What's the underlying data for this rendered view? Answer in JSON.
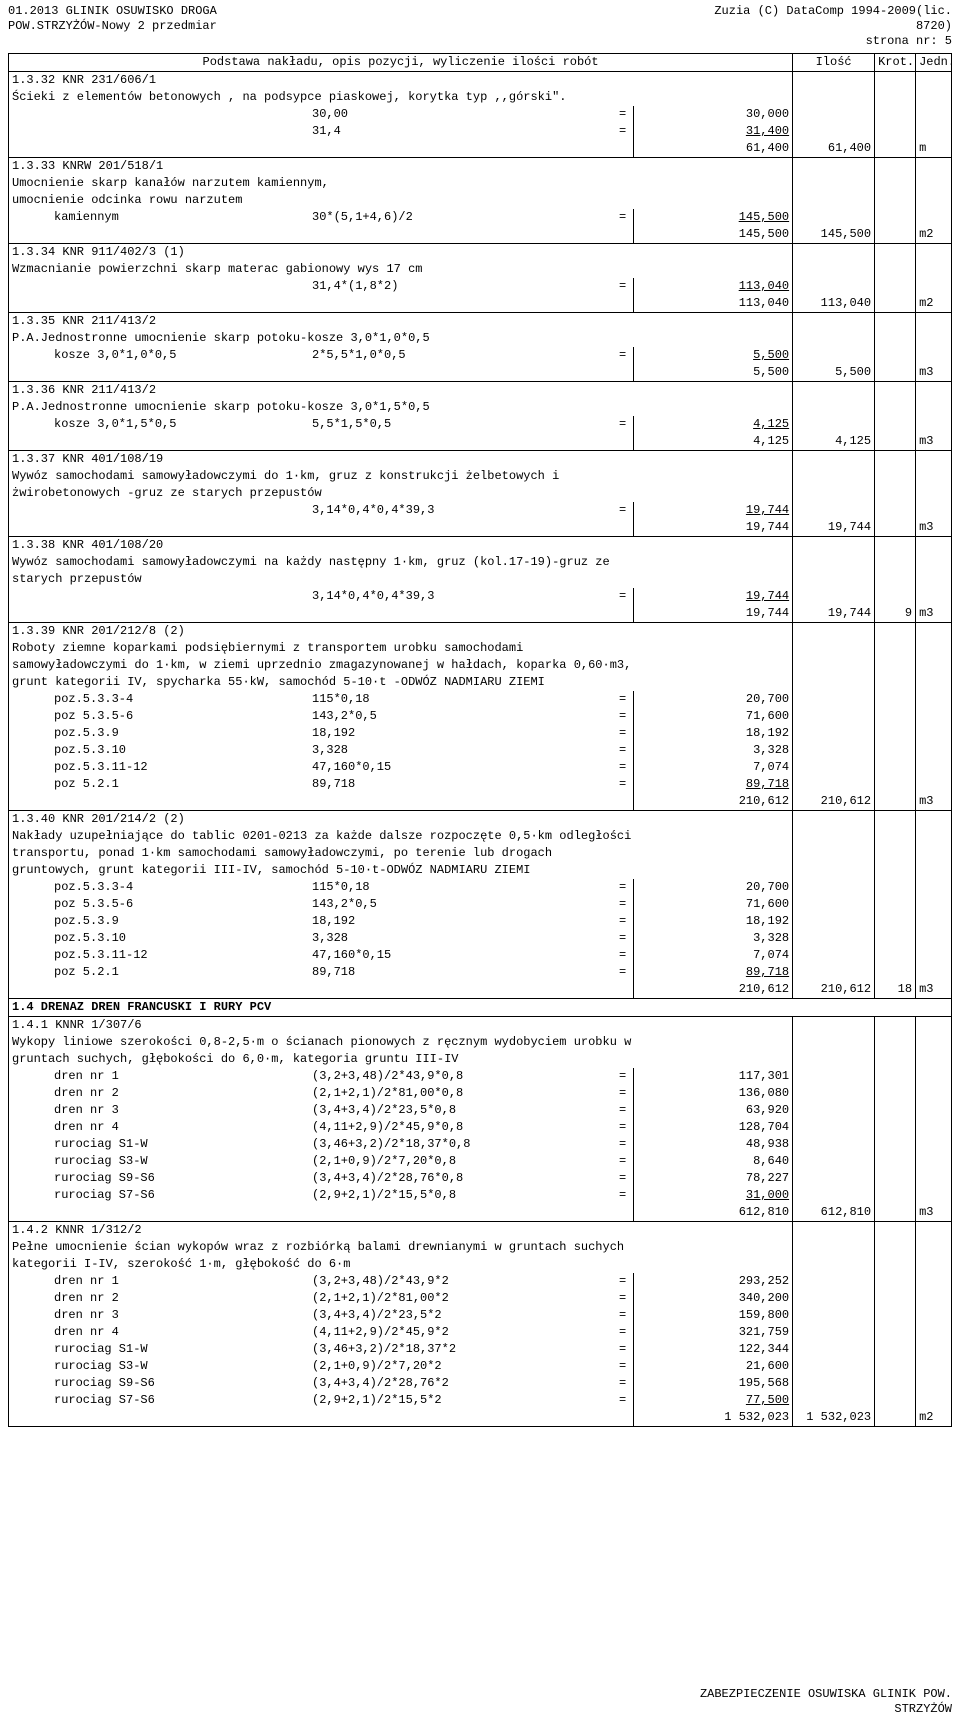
{
  "header": {
    "left1": "01.2013 GLINIK  OSUWISKO DROGA",
    "left2": "POW.STRZYŻÓW-Nowy 2 przedmiar",
    "right1": "Zuzia (C) DataComp 1994-2009(lic.",
    "right2": "8720)",
    "page": "strona nr:    5"
  },
  "table_header": {
    "desc": "Podstawa nakładu, opis pozycji, wyliczenie ilości robót",
    "qty": "Ilość",
    "krot": "Krot.",
    "unit": "Jedn."
  },
  "footer": {
    "line1": "ZABEZPIECZENIE OSUWISKA GLINIK POW.",
    "line2": "STRZYŻÓW"
  },
  "rows": [
    {
      "type": "code",
      "code": "1.3.32 KNR 231/606/1"
    },
    {
      "type": "text",
      "text": "Ścieki z elementów betonowych , na podsypce piaskowej, korytka typ ,,górski\"."
    },
    {
      "type": "calc",
      "label": "",
      "expr": "30,00",
      "val": "30,000"
    },
    {
      "type": "calc",
      "label": "",
      "expr": "31,4",
      "val": "31,400",
      "ul": true
    },
    {
      "type": "sum",
      "val": "61,400",
      "qty": "61,400",
      "unit": "m"
    },
    {
      "type": "code",
      "code": "1.3.33 KNRW 201/518/1"
    },
    {
      "type": "text",
      "text": "Umocnienie skarp kanałów narzutem kamiennym,"
    },
    {
      "type": "text",
      "text": "umocnienie odcinka rowu narzutem"
    },
    {
      "type": "calc",
      "label": "kamiennym",
      "expr": "30*(5,1+4,6)/2",
      "val": "145,500",
      "ul": true
    },
    {
      "type": "sum",
      "val": "145,500",
      "qty": "145,500",
      "unit": "m2"
    },
    {
      "type": "code",
      "code": "1.3.34 KNR 911/402/3 (1)"
    },
    {
      "type": "text",
      "text": "Wzmacnianie powierzchni skarp materac gabionowy wys 17 cm"
    },
    {
      "type": "calc",
      "label": "",
      "expr": "31,4*(1,8*2)",
      "val": "113,040",
      "ul": true
    },
    {
      "type": "sum",
      "val": "113,040",
      "qty": "113,040",
      "unit": "m2"
    },
    {
      "type": "code",
      "code": "1.3.35 KNR 211/413/2"
    },
    {
      "type": "text",
      "text": "P.A.Jednostronne  umocnienie skarp potoku-kosze 3,0*1,0*0,5"
    },
    {
      "type": "calc",
      "label": "kosze 3,0*1,0*0,5",
      "expr": "2*5,5*1,0*0,5",
      "val": "5,500",
      "ul": true
    },
    {
      "type": "sum",
      "val": "5,500",
      "qty": "5,500",
      "unit": "m3"
    },
    {
      "type": "code",
      "code": "1.3.36 KNR 211/413/2"
    },
    {
      "type": "text",
      "text": "P.A.Jednostronne  umocnienie skarp potoku-kosze 3,0*1,5*0,5"
    },
    {
      "type": "calc",
      "label": "kosze 3,0*1,5*0,5",
      "expr": "5,5*1,5*0,5",
      "val": "4,125",
      "ul": true
    },
    {
      "type": "sum",
      "val": "4,125",
      "qty": "4,125",
      "unit": "m3"
    },
    {
      "type": "code",
      "code": "1.3.37 KNR 401/108/19"
    },
    {
      "type": "text",
      "text": "Wywóz samochodami samowyładowczymi do 1·km, gruz z konstrukcji żelbetowych i"
    },
    {
      "type": "text",
      "text": "żwirobetonowych -gruz ze starych przepustów"
    },
    {
      "type": "calc",
      "label": "",
      "expr": "3,14*0,4*0,4*39,3",
      "val": "19,744",
      "ul": true
    },
    {
      "type": "sum",
      "val": "19,744",
      "qty": "19,744",
      "unit": "m3"
    },
    {
      "type": "code",
      "code": "1.3.38 KNR 401/108/20"
    },
    {
      "type": "text",
      "text": "Wywóz samochodami samowyładowczymi na każdy następny 1·km, gruz (kol.17-19)-gruz ze"
    },
    {
      "type": "text",
      "text": "starych przepustów"
    },
    {
      "type": "calc",
      "label": "",
      "expr": "3,14*0,4*0,4*39,3",
      "val": "19,744",
      "ul": true
    },
    {
      "type": "sum",
      "val": "19,744",
      "qty": "19,744",
      "krot": "9",
      "unit": "m3"
    },
    {
      "type": "code",
      "code": "1.3.39 KNR 201/212/8 (2)"
    },
    {
      "type": "text",
      "text": "Roboty ziemne koparkami podsiębiernymi z transportem urobku samochodami"
    },
    {
      "type": "text",
      "text": "samowyładowczymi do 1·km, w ziemi uprzednio zmagazynowanej w hałdach, koparka 0,60·m3,"
    },
    {
      "type": "text",
      "text": "grunt kategorii IV, spycharka 55·kW, samochód 5-10·t -ODWÓZ NADMIARU ZIEMI"
    },
    {
      "type": "calc",
      "label": "poz.5.3.3-4",
      "expr": "115*0,18",
      "val": "20,700"
    },
    {
      "type": "calc",
      "label": "poz 5.3.5-6",
      "expr": "143,2*0,5",
      "val": "71,600"
    },
    {
      "type": "calc",
      "label": "poz.5.3.9",
      "expr": "18,192",
      "val": "18,192"
    },
    {
      "type": "calc",
      "label": "poz.5.3.10",
      "expr": "3,328",
      "val": "3,328"
    },
    {
      "type": "calc",
      "label": "poz.5.3.11-12",
      "expr": "47,160*0,15",
      "val": "7,074"
    },
    {
      "type": "calc",
      "label": "poz 5.2.1",
      "expr": "89,718",
      "val": "89,718",
      "ul": true
    },
    {
      "type": "sum",
      "val": "210,612",
      "qty": "210,612",
      "unit": "m3"
    },
    {
      "type": "code",
      "code": "1.3.40 KNR 201/214/2 (2)"
    },
    {
      "type": "text",
      "text": "Nakłady uzupełniające do tablic 0201-0213 za każde dalsze rozpoczęte 0,5·km odległości"
    },
    {
      "type": "text",
      "text": "transportu, ponad 1·km samochodami samowyładowczymi, po terenie lub drogach"
    },
    {
      "type": "text",
      "text": "gruntowych, grunt kategorii III-IV, samochód 5-10·t-ODWÓZ NADMIARU ZIEMI"
    },
    {
      "type": "calc",
      "label": "poz.5.3.3-4",
      "expr": "115*0,18",
      "val": "20,700"
    },
    {
      "type": "calc",
      "label": "poz 5.3.5-6",
      "expr": "143,2*0,5",
      "val": "71,600"
    },
    {
      "type": "calc",
      "label": "poz.5.3.9",
      "expr": "18,192",
      "val": "18,192"
    },
    {
      "type": "calc",
      "label": "poz.5.3.10",
      "expr": "3,328",
      "val": "3,328"
    },
    {
      "type": "calc",
      "label": "poz.5.3.11-12",
      "expr": "47,160*0,15",
      "val": "7,074"
    },
    {
      "type": "calc",
      "label": "poz 5.2.1",
      "expr": "89,718",
      "val": "89,718",
      "ul": true
    },
    {
      "type": "sum",
      "val": "210,612",
      "qty": "210,612",
      "krot": "18",
      "unit": "m3"
    },
    {
      "type": "section",
      "text": "1.4 DRENAZ DREN FRANCUSKI I RURY PCV"
    },
    {
      "type": "code",
      "code": "1.4.1 KNNR 1/307/6"
    },
    {
      "type": "text",
      "text": "Wykopy liniowe szerokości 0,8-2,5·m o ścianach pionowych z ręcznym wydobyciem urobku w"
    },
    {
      "type": "text",
      "text": "gruntach suchych, głębokości do 6,0·m, kategoria gruntu III-IV"
    },
    {
      "type": "calc",
      "label": "dren nr 1",
      "expr": "(3,2+3,48)/2*43,9*0,8",
      "val": "117,301"
    },
    {
      "type": "calc",
      "label": "dren nr 2",
      "expr": "(2,1+2,1)/2*81,00*0,8",
      "val": "136,080"
    },
    {
      "type": "calc",
      "label": "dren nr 3",
      "expr": "(3,4+3,4)/2*23,5*0,8",
      "val": "63,920"
    },
    {
      "type": "calc",
      "label": "dren nr 4",
      "expr": "(4,11+2,9)/2*45,9*0,8",
      "val": "128,704"
    },
    {
      "type": "calc",
      "label": "rurociag S1-W",
      "expr": "(3,46+3,2)/2*18,37*0,8",
      "val": "48,938"
    },
    {
      "type": "calc",
      "label": "rurociag S3-W",
      "expr": "(2,1+0,9)/2*7,20*0,8",
      "val": "8,640"
    },
    {
      "type": "calc",
      "label": "rurociag S9-S6",
      "expr": "(3,4+3,4)/2*28,76*0,8",
      "val": "78,227"
    },
    {
      "type": "calc",
      "label": "rurociag S7-S6",
      "expr": "(2,9+2,1)/2*15,5*0,8",
      "val": "31,000",
      "ul": true
    },
    {
      "type": "sum",
      "val": "612,810",
      "qty": "612,810",
      "unit": "m3"
    },
    {
      "type": "code",
      "code": "1.4.2 KNNR 1/312/2"
    },
    {
      "type": "text",
      "text": "Pełne umocnienie ścian wykopów wraz z rozbiórką balami drewnianymi w gruntach suchych"
    },
    {
      "type": "text",
      "text": "kategorii I-IV, szerokość 1·m, głębokość do 6·m"
    },
    {
      "type": "calc",
      "label": "dren nr 1",
      "expr": "(3,2+3,48)/2*43,9*2",
      "val": "293,252"
    },
    {
      "type": "calc",
      "label": "dren nr 2",
      "expr": "(2,1+2,1)/2*81,00*2",
      "val": "340,200"
    },
    {
      "type": "calc",
      "label": "dren nr 3",
      "expr": "(3,4+3,4)/2*23,5*2",
      "val": "159,800"
    },
    {
      "type": "calc",
      "label": "dren nr 4",
      "expr": "(4,11+2,9)/2*45,9*2",
      "val": "321,759"
    },
    {
      "type": "calc",
      "label": "rurociag S1-W",
      "expr": "(3,46+3,2)/2*18,37*2",
      "val": "122,344"
    },
    {
      "type": "calc",
      "label": "rurociag S3-W",
      "expr": "(2,1+0,9)/2*7,20*2",
      "val": "21,600"
    },
    {
      "type": "calc",
      "label": "rurociag S9-S6",
      "expr": "(3,4+3,4)/2*28,76*2",
      "val": "195,568"
    },
    {
      "type": "calc",
      "label": "rurociag S7-S6",
      "expr": "(2,9+2,1)/2*15,5*2",
      "val": "77,500",
      "ul": true
    },
    {
      "type": "sum",
      "val": "1 532,023",
      "qty": "1 532,023",
      "unit": "m2",
      "last": true
    }
  ]
}
